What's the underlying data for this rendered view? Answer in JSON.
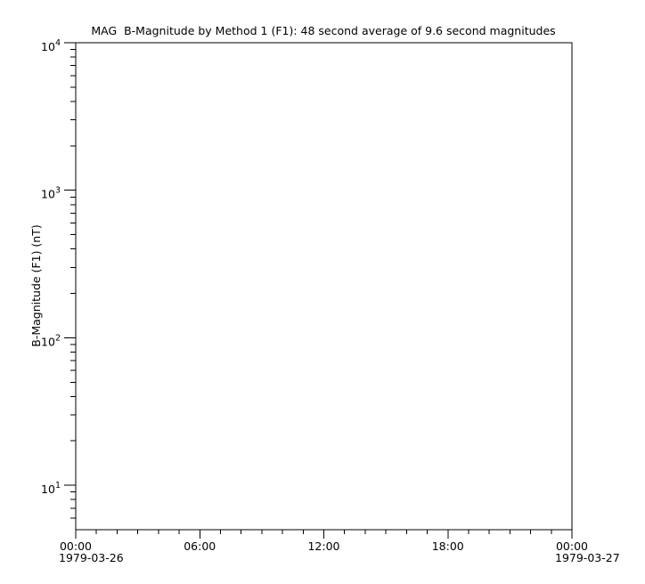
{
  "chart_data": {
    "type": "line",
    "title": "MAG  B-Magnitude by Method 1 (F1): 48 second average of 9.6 second magnitudes",
    "ylabel": "B-Magnitude (F1) (nT)",
    "xlabel": "",
    "y_scale": "log",
    "ylim": [
      5,
      10000
    ],
    "y_major_ticks": [
      10,
      100,
      1000,
      10000
    ],
    "y_major_tick_labels": [
      "10^1",
      "10^2",
      "10^3",
      "10^4"
    ],
    "x_unit": "hours",
    "xlim_hours": [
      0,
      24
    ],
    "x_major_ticks_hours": [
      0,
      6,
      12,
      18,
      24
    ],
    "x_major_tick_labels": [
      "00:00",
      "06:00",
      "12:00",
      "18:00",
      "00:00"
    ],
    "x_minor_tick_interval_hours": 1,
    "x_date_labels": [
      {
        "hour": 0,
        "label": "1979-03-26"
      },
      {
        "hour": 24,
        "label": "1979-03-27"
      }
    ],
    "series": [],
    "grid": false,
    "legend": false,
    "axis_color": "#000000",
    "text_color": "#000000",
    "background_color": "#ffffff"
  }
}
